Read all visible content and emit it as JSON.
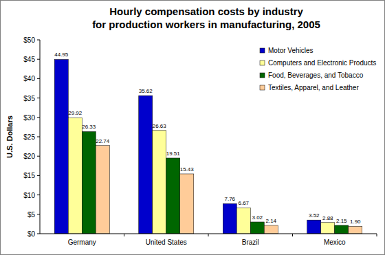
{
  "chart_data": {
    "type": "bar",
    "title": "Hourly compensation costs by industry\nfor production workers in manufacturing, 2005",
    "y_label": "U.S. Dollars",
    "categories": [
      "Germany",
      "United States",
      "Brazil",
      "Mexico"
    ],
    "series": [
      {
        "name": "Motor Vehicles",
        "color": "#0000cc",
        "values": [
          44.95,
          35.62,
          7.76,
          3.52
        ]
      },
      {
        "name": "Computers and Electronic Products",
        "color": "#ffff99",
        "values": [
          29.92,
          26.63,
          6.67,
          2.88
        ]
      },
      {
        "name": "Food, Beverages, and Tobacco",
        "color": "#006600",
        "values": [
          26.33,
          19.51,
          3.02,
          2.15
        ]
      },
      {
        "name": "Textiles, Apparel, and Leather",
        "color": "#ffcc99",
        "values": [
          22.74,
          15.43,
          2.14,
          1.9
        ],
        "value_labels": [
          "22.74",
          "15.43",
          "2.14",
          "1.90"
        ]
      }
    ],
    "ylim": [
      0,
      50
    ],
    "yticks": [
      {
        "value": 0,
        "label": "$0"
      },
      {
        "value": 5,
        "label": "$5"
      },
      {
        "value": 10,
        "label": "$10"
      },
      {
        "value": 15,
        "label": "$15"
      },
      {
        "value": 20,
        "label": "$20"
      },
      {
        "value": 25,
        "label": "$25"
      },
      {
        "value": 30,
        "label": "$30"
      },
      {
        "value": 35,
        "label": "$35"
      },
      {
        "value": 40,
        "label": "$40"
      },
      {
        "value": 45,
        "label": "$45"
      },
      {
        "value": 50,
        "label": "$50"
      }
    ],
    "grid": false,
    "legend": "top-right",
    "data_labels": true
  }
}
